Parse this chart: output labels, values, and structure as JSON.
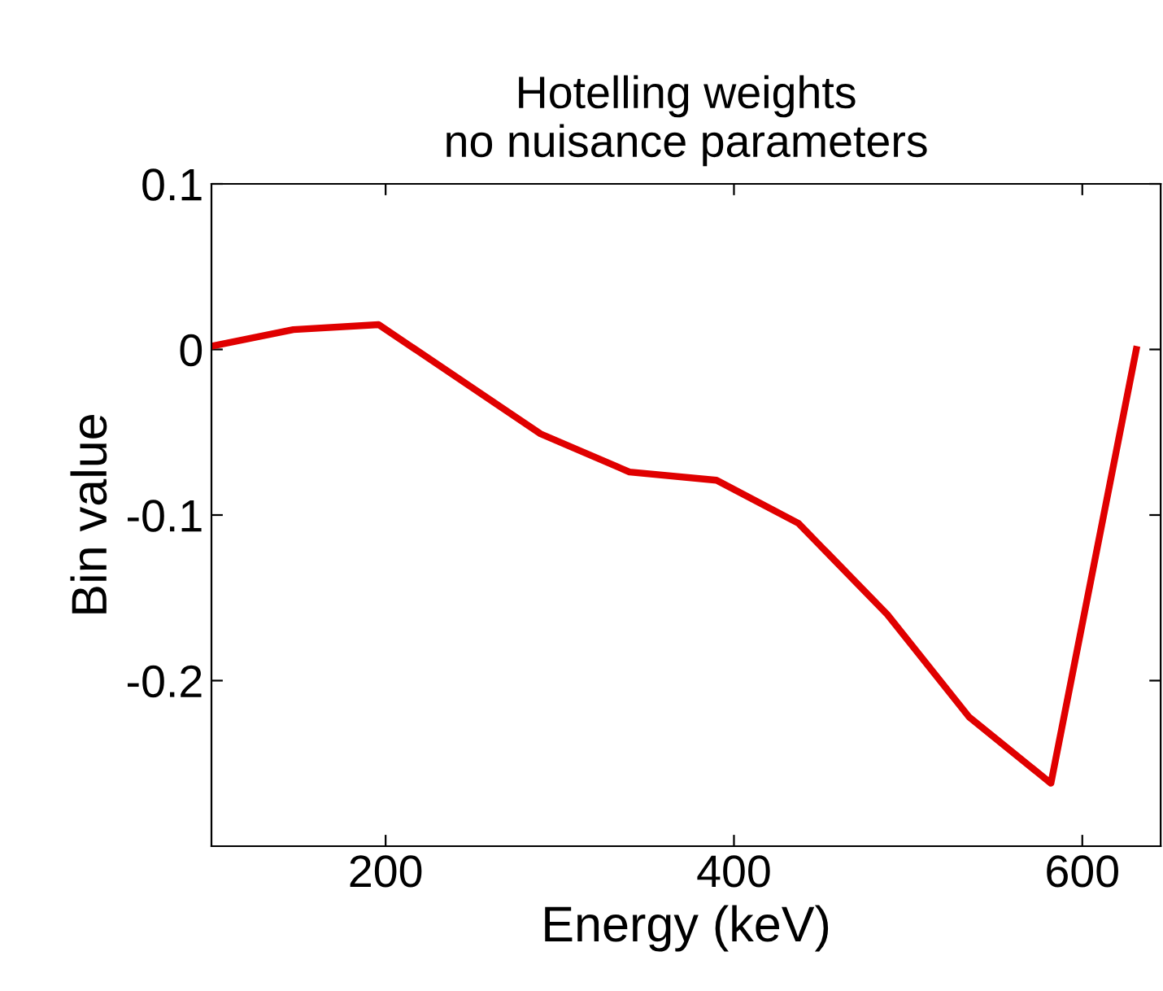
{
  "chart_data": {
    "type": "line",
    "title": "Hotelling weights\nno nuisance parameters",
    "xlabel": "Energy (keV)",
    "ylabel": "Bin value",
    "x": [
      100,
      147,
      196,
      289,
      340,
      390,
      437,
      488,
      535,
      582,
      631
    ],
    "series": [
      {
        "color": "#e00000",
        "values": [
          0.002,
          0.012,
          0.015,
          -0.051,
          -0.074,
          -0.079,
          -0.105,
          -0.16,
          -0.222,
          -0.262,
          0.0
        ]
      }
    ],
    "xlim": [
      100,
      645
    ],
    "xticks": [
      200,
      400,
      600
    ],
    "ylim": [
      -0.3,
      0.1
    ],
    "yticks": [
      -0.2,
      -0.1,
      0,
      0.1
    ],
    "grid": false,
    "marker": "none",
    "line_style": "solid"
  }
}
